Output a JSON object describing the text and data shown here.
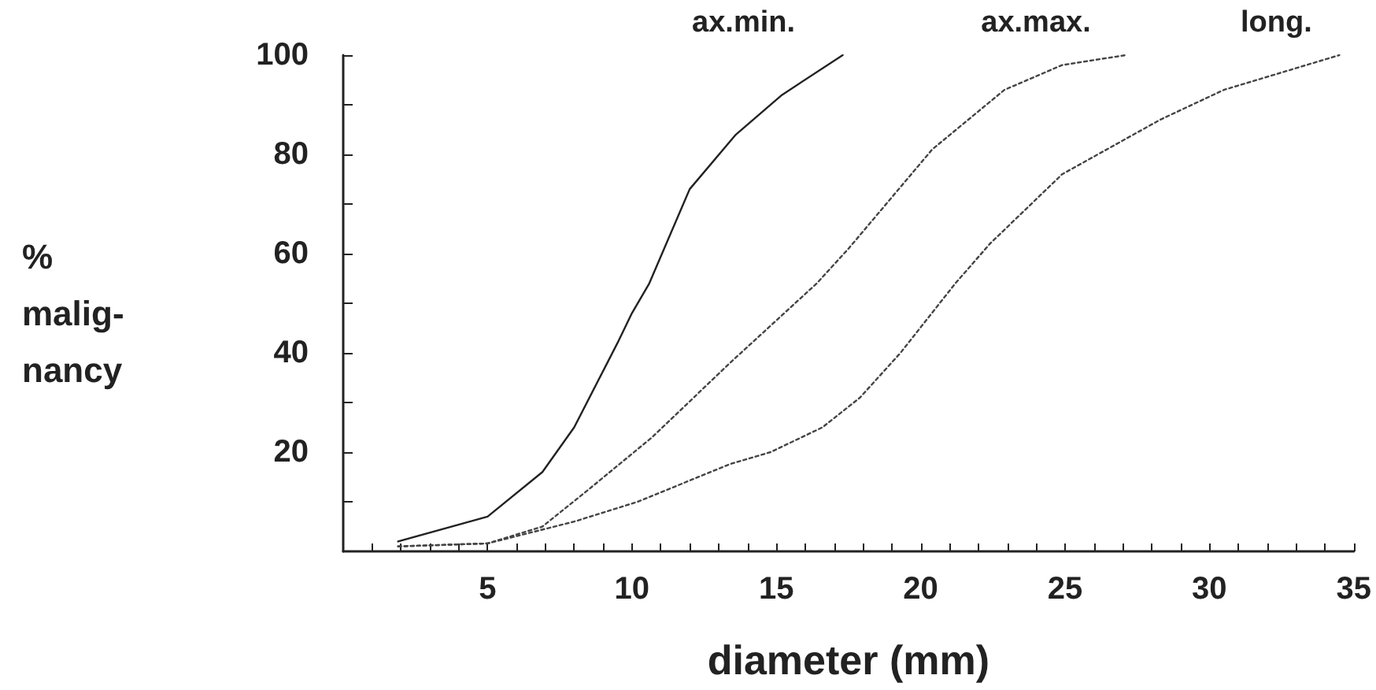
{
  "chart_data": {
    "type": "line",
    "xlabel": "diameter (mm)",
    "ylabel": "%\nmalig-\nnancy",
    "xlim": [
      0,
      35
    ],
    "ylim": [
      0,
      100
    ],
    "xticks": [
      {
        "value": 1,
        "label": null
      },
      {
        "value": 2,
        "label": null
      },
      {
        "value": 3,
        "label": null
      },
      {
        "value": 4,
        "label": null
      },
      5,
      {
        "value": 6,
        "label": null
      },
      {
        "value": 7,
        "label": null
      },
      {
        "value": 8,
        "label": null
      },
      {
        "value": 9,
        "label": null
      },
      10,
      {
        "value": 11,
        "label": null
      },
      {
        "value": 12,
        "label": null
      },
      {
        "value": 13,
        "label": null
      },
      {
        "value": 14,
        "label": null
      },
      15,
      {
        "value": 16,
        "label": null
      },
      {
        "value": 17,
        "label": null
      },
      {
        "value": 18,
        "label": null
      },
      {
        "value": 19,
        "label": null
      },
      20,
      {
        "value": 21,
        "label": null
      },
      {
        "value": 22,
        "label": null
      },
      {
        "value": 23,
        "label": null
      },
      {
        "value": 24,
        "label": null
      },
      25,
      {
        "value": 26,
        "label": null
      },
      {
        "value": 27,
        "label": null
      },
      {
        "value": 28,
        "label": null
      },
      {
        "value": 29,
        "label": null
      },
      30,
      {
        "value": 31,
        "label": null
      },
      {
        "value": 32,
        "label": null
      },
      {
        "value": 33,
        "label": null
      },
      {
        "value": 34,
        "label": null
      },
      35
    ],
    "yticks": [
      {
        "value": 10,
        "label": null
      },
      20,
      {
        "value": 30,
        "label": null
      },
      40,
      {
        "value": 50,
        "label": null
      },
      60,
      {
        "value": 70,
        "label": null
      },
      80,
      {
        "value": 90,
        "label": null
      },
      100
    ],
    "grid": false,
    "legend": false,
    "marker": "none",
    "series": [
      {
        "name": "ax.min.",
        "color": "#222222",
        "line_style": "solid",
        "x": [
          1.9,
          5,
          6.9,
          8,
          9.5,
          10,
          10.6,
          12,
          13.6,
          15.2,
          17.3
        ],
        "values": [
          2,
          7,
          16,
          25,
          42,
          48,
          54,
          73,
          84,
          92,
          100
        ]
      },
      {
        "name": "ax.max.",
        "color": "#444444",
        "line_style": "dotted",
        "x": [
          1.9,
          5,
          6.9,
          8.4,
          10.7,
          13.4,
          16.4,
          17.5,
          20.4,
          22.9,
          24.9,
          27.1
        ],
        "values": [
          1,
          1.6,
          5,
          12,
          23,
          38,
          54,
          61,
          81,
          93,
          98,
          100
        ]
      },
      {
        "name": "long.",
        "color": "#444444",
        "line_style": "dotted",
        "x": [
          1.9,
          5,
          8,
          10.2,
          13.4,
          14.8,
          16.6,
          17.9,
          19.3,
          21.2,
          22.4,
          24.9,
          28.3,
          30.5,
          34.5
        ],
        "values": [
          1,
          1.6,
          6,
          10,
          17.6,
          20,
          25,
          31,
          40,
          54,
          62,
          76,
          87,
          93,
          100
        ]
      }
    ]
  }
}
